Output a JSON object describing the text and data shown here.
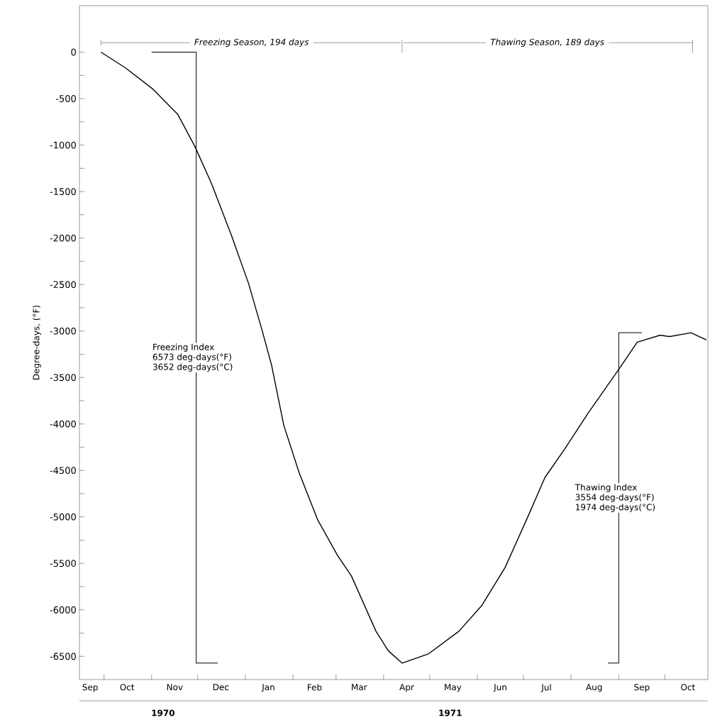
{
  "chart_data": {
    "type": "line",
    "ylabel": "Degree-days, (°F)",
    "xlim": [
      "1970-09-15",
      "1971-10-29"
    ],
    "ylim": [
      -6750,
      500
    ],
    "xticks": [
      {
        "value": "1970-09-22",
        "label": "Sep"
      },
      {
        "value": "1970-10-01",
        "label": null
      },
      {
        "value": "1970-10-16",
        "label": "Oct"
      },
      {
        "value": "1970-11-01",
        "label": null
      },
      {
        "value": "1970-11-16",
        "label": "Nov"
      },
      {
        "value": "1970-12-01",
        "label": null
      },
      {
        "value": "1970-12-16",
        "label": "Dec"
      },
      {
        "value": "1971-01-01",
        "label": null
      },
      {
        "value": "1971-01-16",
        "label": "Jan"
      },
      {
        "value": "1971-02-01",
        "label": null
      },
      {
        "value": "1971-02-15",
        "label": "Feb"
      },
      {
        "value": "1971-03-01",
        "label": null
      },
      {
        "value": "1971-03-16",
        "label": "Mar"
      },
      {
        "value": "1971-04-01",
        "label": null
      },
      {
        "value": "1971-04-16",
        "label": "Apr"
      },
      {
        "value": "1971-05-01",
        "label": null
      },
      {
        "value": "1971-05-16",
        "label": "May"
      },
      {
        "value": "1971-06-01",
        "label": null
      },
      {
        "value": "1971-06-16",
        "label": "Jun"
      },
      {
        "value": "1971-07-01",
        "label": null
      },
      {
        "value": "1971-07-16",
        "label": "Jul"
      },
      {
        "value": "1971-08-01",
        "label": null
      },
      {
        "value": "1971-08-16",
        "label": "Aug"
      },
      {
        "value": "1971-09-01",
        "label": null
      },
      {
        "value": "1971-09-16",
        "label": "Sep"
      },
      {
        "value": "1971-10-01",
        "label": null
      },
      {
        "value": "1971-10-16",
        "label": "Oct"
      }
    ],
    "yticks": [
      0,
      {
        "value": -250,
        "label": null
      },
      -500,
      {
        "value": -750,
        "label": null
      },
      -1000,
      {
        "value": -1250,
        "label": null
      },
      -1500,
      {
        "value": -1750,
        "label": null
      },
      -2000,
      {
        "value": -2250,
        "label": null
      },
      -2500,
      {
        "value": -2750,
        "label": null
      },
      -3000,
      {
        "value": -3250,
        "label": null
      },
      -3500,
      {
        "value": -3750,
        "label": null
      },
      -4000,
      {
        "value": -4250,
        "label": null
      },
      -4500,
      {
        "value": -4750,
        "label": null
      },
      -5000,
      {
        "value": -5250,
        "label": null
      },
      -5500,
      {
        "value": -5750,
        "label": null
      },
      -6000,
      {
        "value": -6250,
        "label": null
      },
      -6500
    ],
    "marker": "none",
    "line_style": "solid",
    "series": [
      {
        "color": "#000000",
        "x": [
          "1970-09-29",
          "1970-10-15",
          "1970-11-02",
          "1970-11-18",
          "1970-11-29",
          "1970-12-10",
          "1970-12-23",
          "1971-01-03",
          "1971-01-12",
          "1971-01-18",
          "1971-01-26",
          "1971-02-05",
          "1971-02-17",
          "1971-03-02",
          "1971-03-11",
          "1971-03-27",
          "1971-04-04",
          "1971-04-13",
          "1971-04-30",
          "1971-05-20",
          "1971-06-04",
          "1971-06-19",
          "1971-07-03",
          "1971-07-15",
          "1971-07-28",
          "1971-08-12",
          "1971-09-02",
          "1971-09-13",
          "1971-09-28",
          "1971-10-04",
          "1971-10-18",
          "1971-10-28"
        ],
        "values": [
          0,
          -170,
          -400,
          -670,
          -1010,
          -1415,
          -1975,
          -2485,
          -3000,
          -3365,
          -4015,
          -4525,
          -5030,
          -5415,
          -5635,
          -6230,
          -6440,
          -6573,
          -6475,
          -6230,
          -5950,
          -5545,
          -5030,
          -4575,
          -4265,
          -3885,
          -3390,
          -3120,
          -3045,
          -3060,
          -3019,
          -3095
        ]
      },
      {
        "color": "#000000",
        "x": [
          "1970-11-01",
          "1970-11-30",
          "1970-11-30",
          "1970-12-14"
        ],
        "values": [
          0,
          0,
          -6573,
          -6573
        ]
      },
      {
        "color": "#000000",
        "x": [
          "1971-09-16",
          "1971-09-01",
          "1971-09-01",
          "1971-08-25"
        ],
        "values": [
          -3019,
          -3019,
          -6573,
          -6573
        ]
      }
    ],
    "annotations": [
      "Freezing Season, 194 days",
      "Thawing Season, 189 days",
      "Freezing Index",
      "6573 deg-days(°F)",
      "3652 deg-days(°C)",
      "Thawing Index",
      "3554 deg-days(°F)",
      "1974 deg-days(°C)",
      "1970",
      "1971"
    ]
  }
}
